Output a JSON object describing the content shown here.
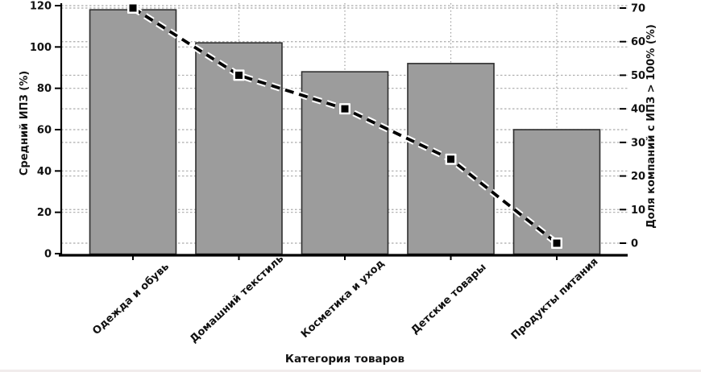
{
  "page": {
    "background": "#ffffff"
  },
  "chart_data": {
    "type": "bar",
    "subtype": "dual-axis bar + dashed line",
    "categories": [
      "Одежда и обувь",
      "Домашний текстиль",
      "Косметика и уход",
      "Детские товары",
      "Продукты питания"
    ],
    "series": [
      {
        "name": "Средний ИПЗ (%)",
        "kind": "bar",
        "axis": "left",
        "values": [
          118,
          102,
          88,
          92,
          60
        ]
      },
      {
        "name": "Доля компаний с ИПЗ > 100% (%)",
        "kind": "line",
        "axis": "right",
        "line_style": "dashed",
        "marker": "square",
        "values": [
          70,
          50,
          40,
          25,
          0
        ]
      }
    ],
    "xlabel": "Категория товаров",
    "ylabel_left": "Средний ИПЗ (%)",
    "ylabel_right": "Доля компаний с ИПЗ > 100% (%)",
    "ylim_left": [
      0,
      120
    ],
    "yticks_left": [
      0,
      20,
      40,
      60,
      80,
      100,
      120
    ],
    "ylim_right": [
      0,
      70
    ],
    "yticks_right": [
      0,
      10,
      20,
      30,
      40,
      50,
      60,
      70
    ],
    "grid": true,
    "legend": "none",
    "colors": {
      "bar_fill": "#9c9c9c",
      "bar_edge": "#2e2e2e",
      "line": "#000000",
      "line_halo": "#ffffff",
      "grid_h": "#ababab",
      "grid_v": "#9e9e9e",
      "axis": "#000000",
      "text": "#111111"
    }
  }
}
